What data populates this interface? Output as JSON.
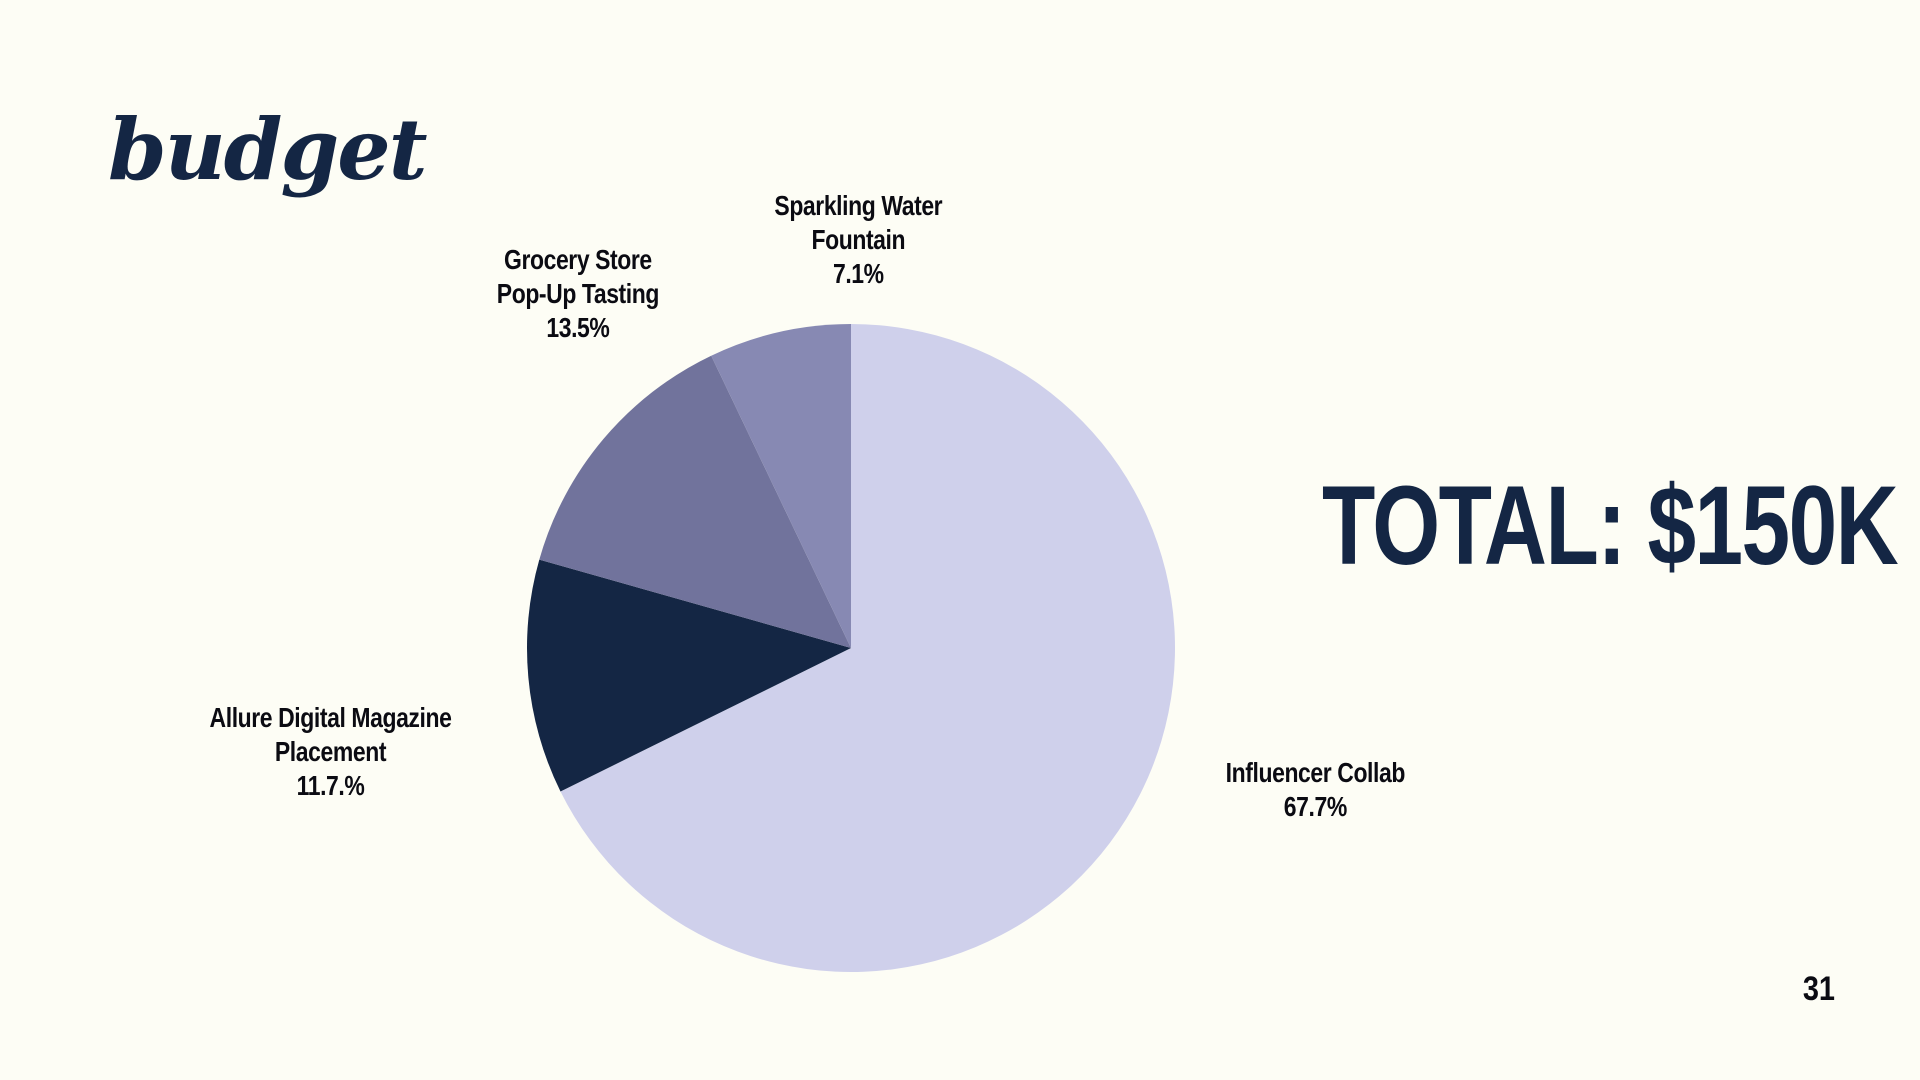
{
  "slide": {
    "title": "budget",
    "total": "TOTAL: $150K",
    "page_number": "31"
  },
  "chart_data": {
    "type": "pie",
    "slices": [
      {
        "label_lines": [
          "Influencer Collab"
        ],
        "percent_label": "67.7%",
        "value": 67.7,
        "color": "#cfd0eb"
      },
      {
        "label_lines": [
          "Allure Digital Magazine",
          "Placement"
        ],
        "percent_label": "11.7.%",
        "value": 11.7,
        "color": "#142644"
      },
      {
        "label_lines": [
          "Grocery Store",
          "Pop-Up Tasting"
        ],
        "percent_label": "13.5%",
        "value": 13.5,
        "color": "#71739c"
      },
      {
        "label_lines": [
          "Sparkling Water",
          "Fountain"
        ],
        "percent_label": "7.1%",
        "value": 7.1,
        "color": "#8789b3"
      }
    ],
    "start": "12 o'clock",
    "direction": "clockwise"
  }
}
